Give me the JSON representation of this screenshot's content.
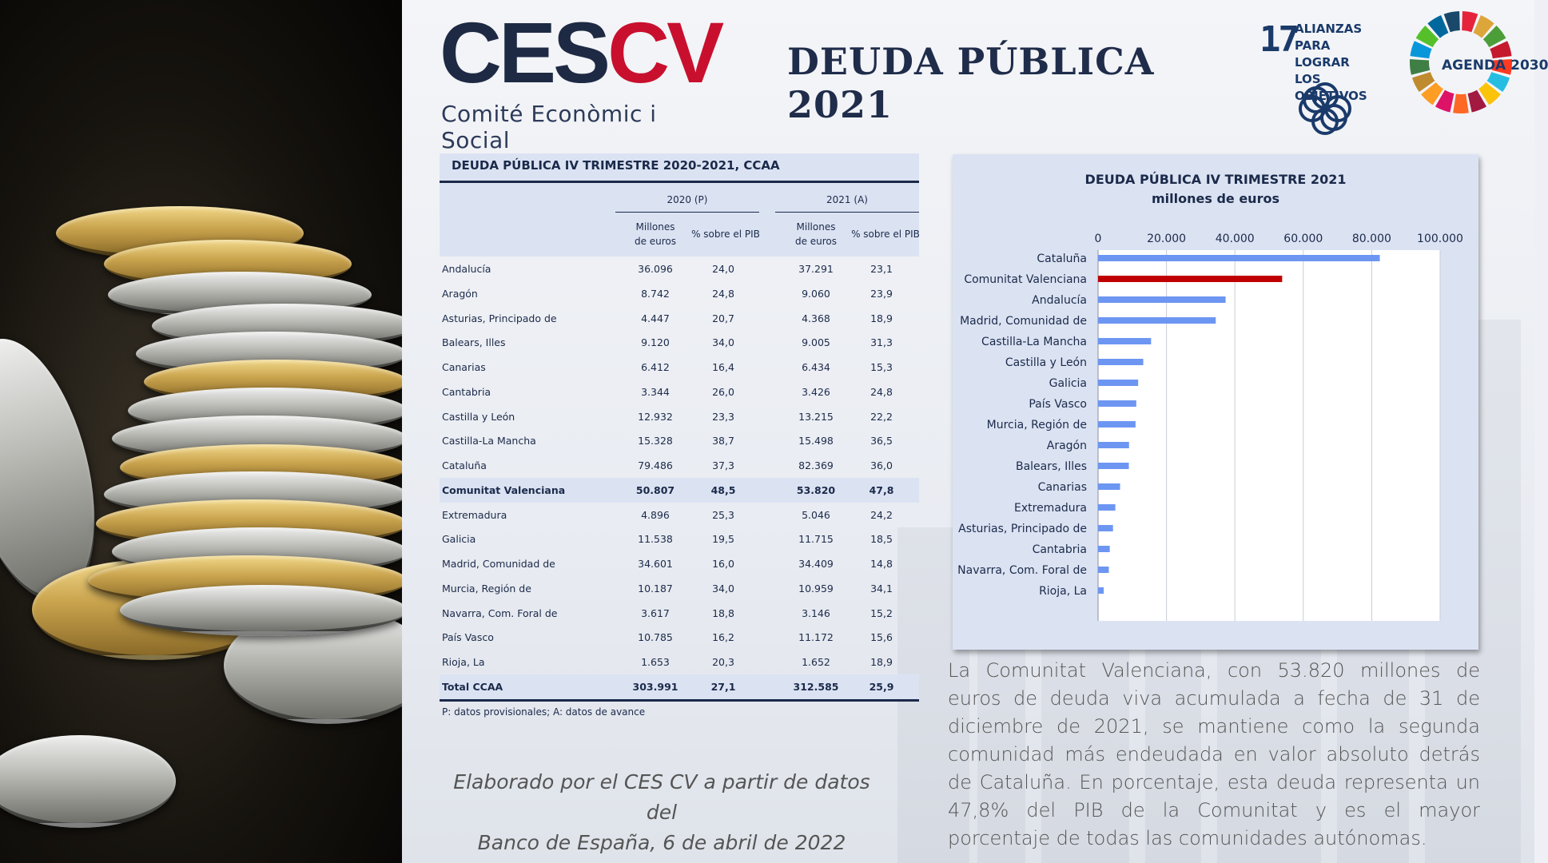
{
  "logo": {
    "mark_dark": "CES",
    "mark_red": "CV",
    "subtitle": "Comité Econòmic i Social"
  },
  "page_title": "DEUDA PÚBLICA 2021",
  "sdg17": {
    "number": "17",
    "line1": "ALIANZAS PARA",
    "line2": "LOGRAR",
    "line3": "LOS OBJETIVOS"
  },
  "agenda": {
    "label": "AGENDA 2030"
  },
  "table": {
    "title": "DEUDA PÚBLICA  IV TRIMESTRE 2020-2021, CCAA",
    "group_2020": "2020 (P)",
    "group_2021": "2021 (A)",
    "col_millones_1": "Millones",
    "col_millones_2": "de euros",
    "col_pib": "% sobre el PIB",
    "rows": [
      {
        "name": "Andalucía",
        "m2020": "36.096",
        "p2020": "24,0",
        "m2021": "37.291",
        "p2021": "23,1"
      },
      {
        "name": "Aragón",
        "m2020": "8.742",
        "p2020": "24,8",
        "m2021": "9.060",
        "p2021": "23,9"
      },
      {
        "name": "Asturias, Principado de",
        "m2020": "4.447",
        "p2020": "20,7",
        "m2021": "4.368",
        "p2021": "18,9"
      },
      {
        "name": "Balears, Illes",
        "m2020": "9.120",
        "p2020": "34,0",
        "m2021": "9.005",
        "p2021": "31,3"
      },
      {
        "name": "Canarias",
        "m2020": "6.412",
        "p2020": "16,4",
        "m2021": "6.434",
        "p2021": "15,3"
      },
      {
        "name": "Cantabria",
        "m2020": "3.344",
        "p2020": "26,0",
        "m2021": "3.426",
        "p2021": "24,8"
      },
      {
        "name": "Castilla y León",
        "m2020": "12.932",
        "p2020": "23,3",
        "m2021": "13.215",
        "p2021": "22,2"
      },
      {
        "name": "Castilla-La Mancha",
        "m2020": "15.328",
        "p2020": "38,7",
        "m2021": "15.498",
        "p2021": "36,5"
      },
      {
        "name": "Cataluña",
        "m2020": "79.486",
        "p2020": "37,3",
        "m2021": "82.369",
        "p2021": "36,0"
      },
      {
        "name": "Comunitat Valenciana",
        "m2020": "50.807",
        "p2020": "48,5",
        "m2021": "53.820",
        "p2021": "47,8",
        "highlight": true
      },
      {
        "name": "Extremadura",
        "m2020": "4.896",
        "p2020": "25,3",
        "m2021": "5.046",
        "p2021": "24,2"
      },
      {
        "name": "Galicia",
        "m2020": "11.538",
        "p2020": "19,5",
        "m2021": "11.715",
        "p2021": "18,5"
      },
      {
        "name": "Madrid, Comunidad de",
        "m2020": "34.601",
        "p2020": "16,0",
        "m2021": "34.409",
        "p2021": "14,8"
      },
      {
        "name": "Murcia, Región de",
        "m2020": "10.187",
        "p2020": "34,0",
        "m2021": "10.959",
        "p2021": "34,1"
      },
      {
        "name": "Navarra, Com. Foral de",
        "m2020": "3.617",
        "p2020": "18,8",
        "m2021": "3.146",
        "p2021": "15,2"
      },
      {
        "name": "País Vasco",
        "m2020": "10.785",
        "p2020": "16,2",
        "m2021": "11.172",
        "p2021": "15,6"
      },
      {
        "name": "Rioja, La",
        "m2020": "1.653",
        "p2020": "20,3",
        "m2021": "1.652",
        "p2021": "18,9"
      },
      {
        "name": "Total CCAA",
        "m2020": "303.991",
        "p2020": "27,1",
        "m2021": "312.585",
        "p2021": "25,9",
        "total": true
      }
    ],
    "note": "P: datos provisionales; A: datos de avance"
  },
  "credit": {
    "line1": "Elaborado por el CES CV a partir de datos del",
    "line2": "Banco de España, 6 de abril de 2022"
  },
  "paragraph": "La Comunitat Valenciana, con 53.820 millones de euros de deuda viva acumulada a fecha de 31 de diciembre de 2021, se mantiene como la segunda comunidad más endeudada en valor absoluto detrás de Cataluña. En porcentaje, esta deuda representa un 47,8% del PIB de la Comunitat y es el mayor porcentaje de todas las comunidades autónomas.",
  "colors": {
    "navy": "#1b2a4a",
    "brand_red": "#c8102e",
    "bar_blue": "#6d96f2",
    "bar_highlight": "#c00000",
    "table_band": "#dbe3f3"
  },
  "chart_data": {
    "type": "bar",
    "orientation": "horizontal",
    "title": "DEUDA PÚBLICA IV TRIMESTRE 2021",
    "subtitle": "millones de euros",
    "categories": [
      "Cataluña",
      "Comunitat Valenciana",
      "Andalucía",
      "Madrid, Comunidad de",
      "Castilla-La Mancha",
      "Castilla y León",
      "Galicia",
      "País Vasco",
      "Murcia, Región de",
      "Aragón",
      "Balears, Illes",
      "Canarias",
      "Extremadura",
      "Asturias, Principado de",
      "Cantabria",
      "Navarra, Com. Foral de",
      "Rioja, La"
    ],
    "values": [
      82369,
      53820,
      37291,
      34409,
      15498,
      13215,
      11715,
      11172,
      10959,
      9060,
      9005,
      6434,
      5046,
      4368,
      3426,
      3146,
      1652
    ],
    "highlight_category": "Comunitat Valenciana",
    "xlim": [
      0,
      100000
    ],
    "xticks": [
      0,
      20000,
      40000,
      60000,
      80000,
      100000
    ],
    "xtick_labels": [
      "0",
      "20.000",
      "40.000",
      "60.000",
      "80.000",
      "100.000"
    ],
    "axis_position": "top",
    "grid": true
  }
}
